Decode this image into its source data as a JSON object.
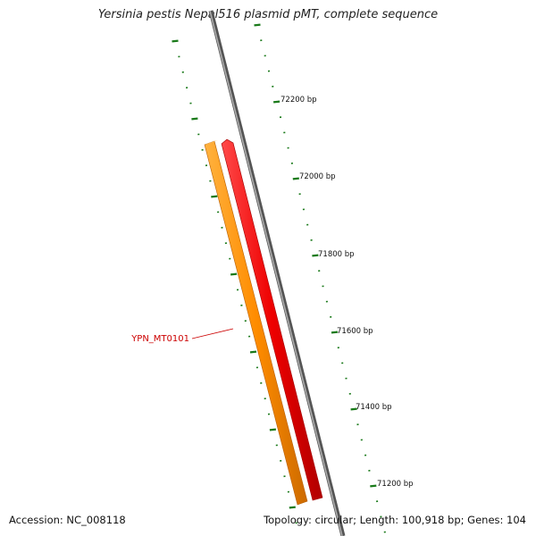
{
  "title": "Yersinia pestis Nepal516 plasmid pMT, complete sequence",
  "footer": {
    "accession": "Accession: NC_008118",
    "summary": "Topology: circular; Length: 100,918 bp; Genes: 104"
  },
  "ruler": {
    "labels": [
      "72200 bp",
      "72000 bp",
      "71800 bp",
      "71600 bp",
      "71400 bp",
      "71200 bp"
    ],
    "tick_color": "#1a7a1a",
    "label_color": "#111111"
  },
  "backbone_color": "#8a8a8a",
  "genes": [
    {
      "label": "YPN_MT0101",
      "color": "#ff8c00",
      "strand": "inner",
      "label_color": "#cc0000"
    },
    {
      "label": "",
      "color": "#ee0000",
      "strand": "outer"
    }
  ]
}
